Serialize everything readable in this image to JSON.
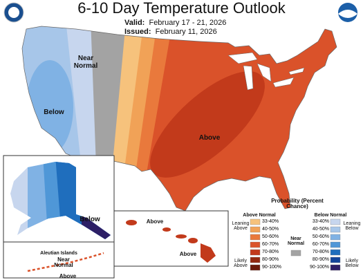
{
  "header": {
    "title": "6-10 Day Temperature Outlook",
    "valid_label": "Valid:",
    "valid": "February 17 - 21, 2026",
    "issued_label": "Issued:",
    "issued": "February 11, 2026"
  },
  "map_labels": {
    "conus_near": "Near Normal",
    "conus_below": "Below",
    "conus_above": "Above",
    "alaska_below": "Below",
    "hawaii_above_1": "Above",
    "hawaii_above_2": "Above",
    "aleutian_title": "Aleutian Islands",
    "aleutian_near": "Near Normal",
    "aleutian_above": "Above"
  },
  "legend": {
    "title": "Probability (Percent Chance)",
    "above": {
      "title": "Above Normal",
      "leaning": "Leaning Above",
      "likely": "Likely Above",
      "ranges": [
        "33-40%",
        "40-50%",
        "50-60%",
        "60-70%",
        "70-80%",
        "80-90%",
        "90-100%"
      ],
      "colors": [
        "#f6c27c",
        "#f1a257",
        "#e9793c",
        "#da522a",
        "#c23a1b",
        "#93290f",
        "#6b1a09"
      ]
    },
    "near": {
      "title": "Near Normal",
      "color": "#a3a3a3"
    },
    "below": {
      "title": "Below Normal",
      "leaning": "Leaning Below",
      "likely": "Likely Below",
      "ranges": [
        "33-40%",
        "40-50%",
        "50-60%",
        "60-70%",
        "70-80%",
        "80-90%",
        "90-100%"
      ],
      "colors": [
        "#c7d6ee",
        "#a7c6e9",
        "#80b2e4",
        "#4f97d7",
        "#1f6ebd",
        "#13459a",
        "#2d1f66"
      ]
    }
  }
}
